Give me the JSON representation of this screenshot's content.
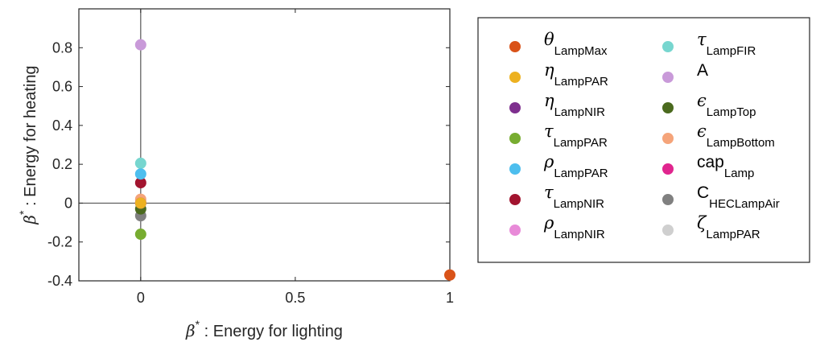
{
  "chart_data": {
    "type": "scatter",
    "xlabel": {
      "symbol": "β",
      "sup": "*",
      "text": " : Energy for lighting"
    },
    "ylabel": {
      "symbol": "β",
      "sup": "*",
      "text": " : Energy for heating"
    },
    "xlim": [
      -0.2,
      1.0
    ],
    "ylim": [
      -0.4,
      1.0
    ],
    "xticks": [
      {
        "v": 0,
        "label": "0"
      },
      {
        "v": 0.5,
        "label": "0.5"
      },
      {
        "v": 1,
        "label": "1"
      }
    ],
    "yticks": [
      {
        "v": -0.4,
        "label": "-0.4"
      },
      {
        "v": -0.2,
        "label": "-0.2"
      },
      {
        "v": 0,
        "label": "0"
      },
      {
        "v": 0.2,
        "label": "0.2"
      },
      {
        "v": 0.4,
        "label": "0.4"
      },
      {
        "v": 0.6,
        "label": "0.6"
      },
      {
        "v": 0.8,
        "label": "0.8"
      }
    ],
    "grid": false,
    "zero_lines": true,
    "legend_placement": "right-outside",
    "series": [
      {
        "sym": "θ",
        "sub": "LampMax",
        "color": "#D95319",
        "x": 1.0,
        "y": -0.37
      },
      {
        "sym": "η",
        "sub": "LampPAR",
        "color": "#EDB120",
        "x": 0.0,
        "y": 0.0
      },
      {
        "sym": "η",
        "sub": "LampNIR",
        "color": "#7E2F8E",
        "x": 0.0,
        "y": 0.0
      },
      {
        "sym": "τ",
        "sub": "LampPAR",
        "color": "#77AC30",
        "x": 0.0,
        "y": -0.16
      },
      {
        "sym": "ρ",
        "sub": "LampPAR",
        "color": "#4DBEEE",
        "x": 0.0,
        "y": 0.15
      },
      {
        "sym": "τ",
        "sub": "LampNIR",
        "color": "#A2142F",
        "x": 0.0,
        "y": 0.105
      },
      {
        "sym": "ρ",
        "sub": "LampNIR",
        "color": "#E88AD8",
        "x": 0.0,
        "y": 0.0
      },
      {
        "sym": "τ",
        "sub": "LampFIR",
        "color": "#77D6CF",
        "x": 0.0,
        "y": 0.205
      },
      {
        "sym": "A",
        "sub": "",
        "color": "#C99AD9",
        "x": 0.0,
        "y": 0.815
      },
      {
        "sym": "ϵ",
        "sub": "LampTop",
        "color": "#4B6A1E",
        "x": 0.0,
        "y": -0.03
      },
      {
        "sym": "ϵ",
        "sub": "LampBottom",
        "color": "#F5A47A",
        "x": 0.0,
        "y": 0.02
      },
      {
        "sym": "cap",
        "sub": "Lamp",
        "color": "#E0258E",
        "x": 0.0,
        "y": 0.0
      },
      {
        "sym": "C",
        "sub": "HECLampAir",
        "color": "#808080",
        "x": 0.0,
        "y": -0.065
      },
      {
        "sym": "ζ",
        "sub": "LampPAR",
        "color": "#CFCFCF",
        "x": 0.0,
        "y": 0.01
      }
    ]
  }
}
